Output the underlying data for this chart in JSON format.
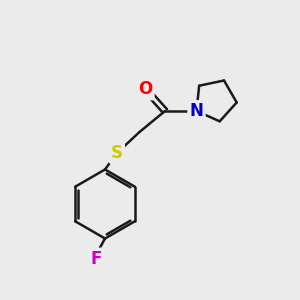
{
  "background_color": "#ebebeb",
  "bond_color": "#1a1a1a",
  "bond_width": 1.8,
  "atom_colors": {
    "O": "#ff0000",
    "N": "#0000cc",
    "S": "#cccc00",
    "F": "#cc00cc",
    "C": "#1a1a1a"
  },
  "font_size": 12
}
